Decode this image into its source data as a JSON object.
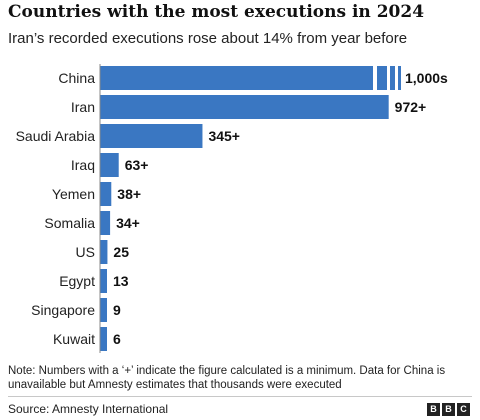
{
  "header": {
    "title": "Countries with the most executions in 2024",
    "subtitle": "Iran’s recorded executions rose about 14% from year before"
  },
  "chart_data": {
    "type": "bar",
    "orientation": "horizontal",
    "title": "Countries with the most executions in 2024",
    "subtitle": "Iran’s recorded executions rose about 14% from year before",
    "categories": [
      "China",
      "Iran",
      "Saudi Arabia",
      "Iraq",
      "Yemen",
      "Somalia",
      "US",
      "Egypt",
      "Singapore",
      "Kuwait"
    ],
    "values": [
      1000,
      972,
      345,
      63,
      38,
      34,
      25,
      13,
      9,
      6
    ],
    "value_labels": [
      "1,000s",
      "972+",
      "345+",
      "63+",
      "38+",
      "34+",
      "25",
      "13",
      "9",
      "6"
    ],
    "bar_color": "#3a77c2",
    "grid": false,
    "xlim": [
      0,
      1000
    ],
    "broken_bar": "China"
  },
  "footer": {
    "note": "Note: Numbers with a ‘+’ indicate the figure calculated is a minimum. Data for China is unavailable but Amnesty estimates that thousands were executed",
    "source": "Source: Amnesty International",
    "logo_letters": [
      "B",
      "B",
      "C"
    ]
  }
}
